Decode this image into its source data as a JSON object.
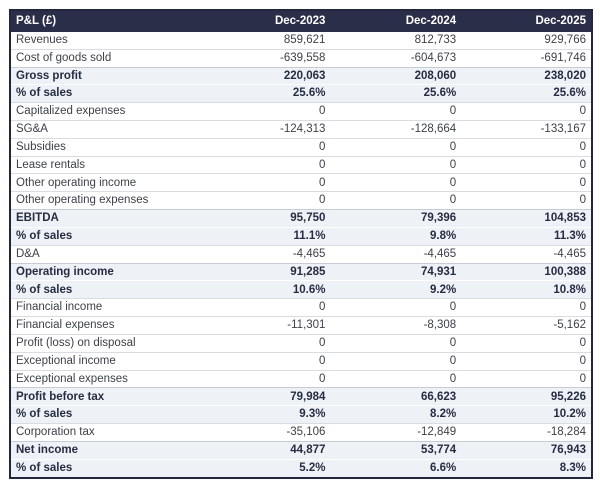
{
  "page": {
    "title": "P&L (£)"
  },
  "colors": {
    "header_bg": "#2b2e48",
    "header_text": "#ffffff",
    "highlight_bg": "#eef2f7",
    "border_outer": "#23273d",
    "row_separator": "#d8dce3",
    "text_normal": "#3d4148",
    "text_emphasis": "#272c42",
    "page_bg": "#ffffff"
  },
  "chart_data": {
    "type": "table",
    "title": "P&L (£)",
    "header": {
      "label": "P&L (£)",
      "columns": [
        "Dec-2023",
        "Dec-2024",
        "Dec-2025"
      ]
    },
    "rows": [
      {
        "label": "Revenues",
        "values": [
          "859,621",
          "812,733",
          "929,766"
        ],
        "emphasis": false
      },
      {
        "label": "Cost of goods sold",
        "values": [
          "-639,558",
          "-604,673",
          "-691,746"
        ],
        "emphasis": false
      },
      {
        "label": "Gross profit",
        "values": [
          "220,063",
          "208,060",
          "238,020"
        ],
        "emphasis": true
      },
      {
        "label": "% of sales",
        "values": [
          "25.6%",
          "25.6%",
          "25.6%"
        ],
        "emphasis": true
      },
      {
        "label": "Capitalized expenses",
        "values": [
          "0",
          "0",
          "0"
        ],
        "emphasis": false
      },
      {
        "label": "SG&A",
        "values": [
          "-124,313",
          "-128,664",
          "-133,167"
        ],
        "emphasis": false
      },
      {
        "label": "Subsidies",
        "values": [
          "0",
          "0",
          "0"
        ],
        "emphasis": false
      },
      {
        "label": "Lease rentals",
        "values": [
          "0",
          "0",
          "0"
        ],
        "emphasis": false
      },
      {
        "label": "Other operating income",
        "values": [
          "0",
          "0",
          "0"
        ],
        "emphasis": false
      },
      {
        "label": "Other operating expenses",
        "values": [
          "0",
          "0",
          "0"
        ],
        "emphasis": false
      },
      {
        "label": "EBITDA",
        "values": [
          "95,750",
          "79,396",
          "104,853"
        ],
        "emphasis": true
      },
      {
        "label": "% of sales",
        "values": [
          "11.1%",
          "9.8%",
          "11.3%"
        ],
        "emphasis": true
      },
      {
        "label": "D&A",
        "values": [
          "-4,465",
          "-4,465",
          "-4,465"
        ],
        "emphasis": false
      },
      {
        "label": "Operating income",
        "values": [
          "91,285",
          "74,931",
          "100,388"
        ],
        "emphasis": true
      },
      {
        "label": "% of sales",
        "values": [
          "10.6%",
          "9.2%",
          "10.8%"
        ],
        "emphasis": true
      },
      {
        "label": "Financial income",
        "values": [
          "0",
          "0",
          "0"
        ],
        "emphasis": false
      },
      {
        "label": "Financial expenses",
        "values": [
          "-11,301",
          "-8,308",
          "-5,162"
        ],
        "emphasis": false
      },
      {
        "label": "Profit (loss) on disposal",
        "values": [
          "0",
          "0",
          "0"
        ],
        "emphasis": false
      },
      {
        "label": "Exceptional income",
        "values": [
          "0",
          "0",
          "0"
        ],
        "emphasis": false
      },
      {
        "label": "Exceptional expenses",
        "values": [
          "0",
          "0",
          "0"
        ],
        "emphasis": false
      },
      {
        "label": "Profit before tax",
        "values": [
          "79,984",
          "66,623",
          "95,226"
        ],
        "emphasis": true
      },
      {
        "label": "% of sales",
        "values": [
          "9.3%",
          "8.2%",
          "10.2%"
        ],
        "emphasis": true
      },
      {
        "label": "Corporation tax",
        "values": [
          "-35,106",
          "-12,849",
          "-18,284"
        ],
        "emphasis": false
      },
      {
        "label": "Net income",
        "values": [
          "44,877",
          "53,774",
          "76,943"
        ],
        "emphasis": true
      },
      {
        "label": "% of sales",
        "values": [
          "5.2%",
          "6.6%",
          "8.3%"
        ],
        "emphasis": true
      }
    ]
  }
}
